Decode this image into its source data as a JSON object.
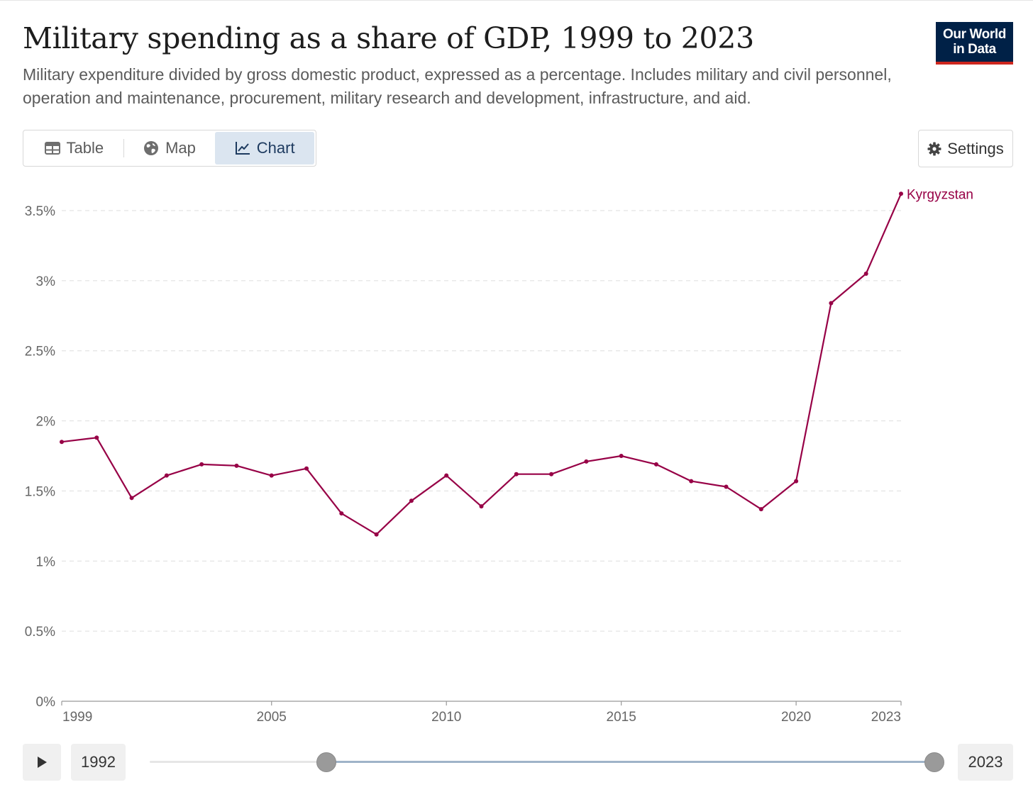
{
  "header": {
    "title": "Military spending as a share of GDP, 1999 to 2023",
    "subtitle": "Military expenditure divided by gross domestic product, expressed as a percentage. Includes military and civil personnel, operation and maintenance, procurement, military research and development, infrastructure, and aid.",
    "logo_line1": "Our World",
    "logo_line2": "in Data"
  },
  "tabs": [
    {
      "label": "Table",
      "icon": "table-icon",
      "active": false
    },
    {
      "label": "Map",
      "icon": "globe-icon",
      "active": false
    },
    {
      "label": "Chart",
      "icon": "line-chart-icon",
      "active": true
    }
  ],
  "settings": {
    "label": "Settings",
    "icon": "gear-icon"
  },
  "timeline": {
    "start_year": "1992",
    "end_year": "2023",
    "play_icon": "play-icon"
  },
  "colors": {
    "series": "#970046",
    "grid": "#dddddd",
    "accent": "#dbe5f0"
  },
  "chart_data": {
    "type": "line",
    "title": "Military spending as a share of GDP, 1999 to 2023",
    "xlabel": "",
    "ylabel": "",
    "xlim": [
      1999,
      2023
    ],
    "ylim": [
      0,
      3.5
    ],
    "y_ticks": [
      0,
      0.5,
      1,
      1.5,
      2,
      2.5,
      3,
      3.5
    ],
    "y_tick_labels": [
      "0%",
      "0.5%",
      "1%",
      "1.5%",
      "2%",
      "2.5%",
      "3%",
      "3.5%"
    ],
    "x_ticks": [
      1999,
      2005,
      2010,
      2015,
      2020,
      2023
    ],
    "x_tick_labels": [
      "1999",
      "2005",
      "2010",
      "2015",
      "2020",
      "2023"
    ],
    "grid": true,
    "legend": "end-of-line labels",
    "series": [
      {
        "name": "Kyrgyzstan",
        "x": [
          1999,
          2000,
          2001,
          2002,
          2003,
          2004,
          2005,
          2006,
          2007,
          2008,
          2009,
          2010,
          2011,
          2012,
          2013,
          2014,
          2015,
          2016,
          2017,
          2018,
          2019,
          2020,
          2021,
          2022,
          2023
        ],
        "values": [
          1.85,
          1.88,
          1.45,
          1.61,
          1.69,
          1.68,
          1.61,
          1.66,
          1.34,
          1.19,
          1.43,
          1.61,
          1.39,
          1.62,
          1.62,
          1.71,
          1.75,
          1.69,
          1.57,
          1.53,
          1.37,
          1.57,
          2.84,
          3.05,
          3.62
        ]
      }
    ]
  }
}
